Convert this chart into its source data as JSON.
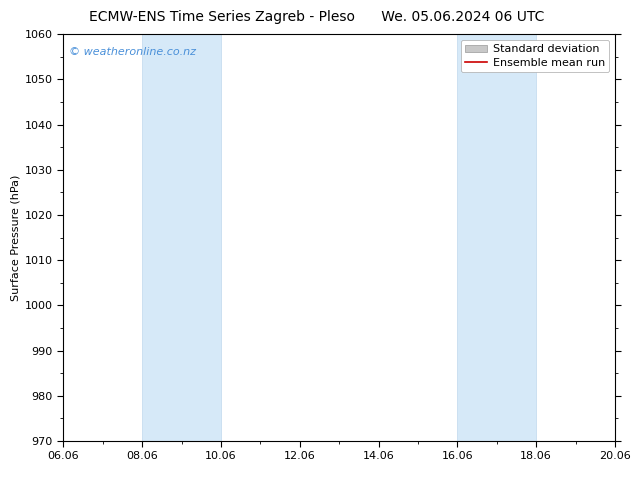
{
  "title_left": "ECMW-ENS Time Series Zagreb - Pleso",
  "title_right": "We. 05.06.2024 06 UTC",
  "ylabel": "Surface Pressure (hPa)",
  "ylim": [
    970,
    1060
  ],
  "yticks": [
    970,
    980,
    990,
    1000,
    1010,
    1020,
    1030,
    1040,
    1050,
    1060
  ],
  "xtick_labels": [
    "06.06",
    "08.06",
    "10.06",
    "12.06",
    "14.06",
    "16.06",
    "18.06",
    "20.06"
  ],
  "xtick_positions": [
    0,
    2,
    4,
    6,
    8,
    10,
    12,
    14
  ],
  "xlim": [
    0,
    14
  ],
  "shaded_bands": [
    {
      "x_start": 2,
      "x_end": 4
    },
    {
      "x_start": 10,
      "x_end": 12
    }
  ],
  "shaded_color": "#d6e9f8",
  "shaded_edge_color": "#c0d8ee",
  "background_color": "#ffffff",
  "watermark_text": "© weatheronline.co.nz",
  "watermark_color": "#4a90d9",
  "legend_entries": [
    {
      "label": "Standard deviation",
      "color": "#c8c8c8",
      "type": "patch"
    },
    {
      "label": "Ensemble mean run",
      "color": "#cc0000",
      "type": "line"
    }
  ],
  "title_fontsize": 10,
  "axis_label_fontsize": 8,
  "tick_fontsize": 8,
  "watermark_fontsize": 8,
  "legend_fontsize": 8,
  "spine_color": "#000000",
  "tick_color": "#000000",
  "minor_tick_count": 1
}
